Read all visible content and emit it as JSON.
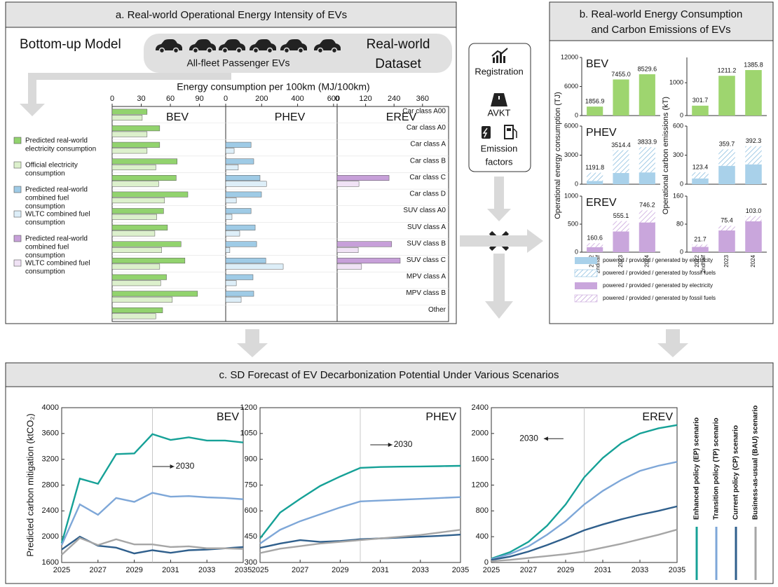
{
  "panel_a": {
    "title": "a. Real-world Operational Energy Intensity of EVs",
    "model": "Bottom-up Model",
    "fleet": "All-fleet Passenger EVs",
    "dataset": [
      "Real-world",
      "Dataset"
    ],
    "axis_title": "Energy consumption per 100km (MJ/100km)"
  },
  "middle": {
    "registration": "Registration",
    "avkt": "AVKT",
    "emission": [
      "Emission",
      "factors"
    ]
  },
  "panel_b": {
    "title": [
      "b. Real-world Energy Consumption",
      "and Carbon Emissions of EVs"
    ],
    "ylabel_left": "Operational energy consumption (TJ)",
    "ylabel_right": "Operational carbon emissions (kT)"
  },
  "panel_c": {
    "title": "c. SD Forecast of EV Decarbonization Potential Under Various Scenarios"
  },
  "chart_data": [
    {
      "type": "hbar",
      "label": "BEV",
      "xlim": [
        0,
        117
      ],
      "xticks": [
        0,
        30,
        60,
        90
      ],
      "categories": [
        "Car class A00",
        "Car class A0",
        "Car class A",
        "Car class B",
        "Car class C",
        "Car class D",
        "SUV class A0",
        "SUV class A",
        "SUV class B",
        "SUV class C",
        "MPV class A",
        "MPV class B",
        "Other"
      ],
      "series": [
        {
          "name": [
            "Predicted real-world",
            "electricity consumption"
          ],
          "color": "#92d36e",
          "values": [
            36,
            49,
            49,
            67,
            66,
            78,
            53,
            57,
            71,
            75,
            56,
            88,
            52
          ]
        },
        {
          "name": [
            "Official electricity",
            "consumption"
          ],
          "color": "#dcf0cc",
          "values": [
            31,
            36,
            36,
            45,
            48,
            54,
            46,
            44,
            51,
            49,
            50,
            62,
            45
          ]
        }
      ]
    },
    {
      "type": "hbar",
      "label": "PHEV",
      "xlim": [
        0,
        620
      ],
      "xticks": [
        0,
        200,
        400,
        600
      ],
      "series": [
        {
          "name": [
            "Predicted real-world",
            "combined fuel",
            "consumption"
          ],
          "color": "#9fcbe6",
          "values": [
            null,
            null,
            141,
            156,
            191,
            199,
            141,
            164,
            172,
            223,
            152,
            156,
            null
          ]
        },
        {
          "name": [
            "WLTC combined fuel",
            "consumption"
          ],
          "color": "#ddeef8",
          "values": [
            null,
            null,
            47,
            70,
            227,
            59,
            35,
            78,
            23,
            320,
            59,
            86,
            null
          ]
        }
      ]
    },
    {
      "type": "hbar",
      "label": "EREV",
      "xlim": [
        0,
        470
      ],
      "xticks": [
        0,
        120,
        240,
        360
      ],
      "series": [
        {
          "name": [
            "Predicted real-world",
            "combined fuel",
            "consumption"
          ],
          "color": "#c7a0d9",
          "values": [
            null,
            null,
            null,
            null,
            219,
            null,
            null,
            null,
            230,
            266,
            null,
            null,
            null
          ]
        },
        {
          "name": [
            "WLTC combined fuel",
            "consumption"
          ],
          "color": "#f0e2f5",
          "values": [
            null,
            null,
            null,
            null,
            92,
            null,
            null,
            null,
            89,
            103,
            null,
            null,
            null
          ]
        }
      ]
    },
    {
      "type": "bar",
      "label": "BEV",
      "color": "#9ed56f",
      "ylim": [
        0,
        12000
      ],
      "yticks": [
        0,
        6000,
        12000
      ],
      "values": [
        1856.9,
        7455.0,
        8529.6
      ],
      "value_labels": [
        "1856.9",
        "7455.0",
        "8529.6"
      ]
    },
    {
      "type": "bar",
      "color": "#9ed56f",
      "ylim": [
        0,
        1770
      ],
      "yticks": [
        0,
        1000
      ],
      "values": [
        301.7,
        1211.2,
        1385.8
      ],
      "value_labels": [
        "301.7",
        "1211.2",
        "1385.8"
      ]
    },
    {
      "type": "stacked",
      "label": "PHEV",
      "ylim": [
        0,
        6000
      ],
      "yticks": [
        0,
        3000,
        6000
      ],
      "total_labels": [
        "1191.8",
        "3514.4",
        "3833.9"
      ],
      "series": [
        {
          "name": "powered / provided / generated by electricity",
          "color": "#a9d1ea",
          "values": [
            340,
            1160,
            1220
          ]
        },
        {
          "name": "powered / provided / generated by  fossil fuels",
          "color": "#8ebfe0",
          "hatch": true,
          "values": [
            851.8,
            2354.4,
            2613.9
          ]
        }
      ]
    },
    {
      "type": "stacked",
      "ylim": [
        0,
        600
      ],
      "yticks": [
        0,
        300,
        600
      ],
      "total_labels": [
        "123.4",
        "359.7",
        "392.3"
      ],
      "series": [
        {
          "color": "#a9d1ea",
          "values": [
            60,
            190,
            205
          ]
        },
        {
          "color": "#8ebfe0",
          "hatch": true,
          "values": [
            63.4,
            169.7,
            187.3
          ]
        }
      ]
    },
    {
      "type": "stacked",
      "label": "EREV",
      "ylim": [
        0,
        1000
      ],
      "yticks": [
        0,
        500,
        1000
      ],
      "categories": [
        "2022 2ndhalf",
        "2023",
        "2024"
      ],
      "total_labels": [
        "160.6",
        "555.1",
        "746.2"
      ],
      "series": [
        {
          "name": "powered / provided / generated by electricity",
          "color": "#c9a6dc",
          "values": [
            90,
            370,
            530
          ]
        },
        {
          "name": "powered / provided / generated by  fossil fuels",
          "color": "#c9a6dc",
          "hatch": true,
          "values": [
            70.6,
            185.1,
            216.2
          ]
        }
      ]
    },
    {
      "type": "stacked",
      "ylim": [
        0,
        160
      ],
      "yticks": [
        0,
        80,
        160
      ],
      "categories": [
        "2022 2ndhalf",
        "2023",
        "2024"
      ],
      "total_labels": [
        "21.7",
        "75.4",
        "103.0"
      ],
      "series": [
        {
          "color": "#c9a6dc",
          "values": [
            15,
            62,
            88
          ]
        },
        {
          "color": "#c9a6dc",
          "hatch": true,
          "values": [
            6.7,
            13.4,
            15.0
          ]
        }
      ]
    },
    {
      "type": "line",
      "label": "BEV",
      "ylabel": "Predicted carbon mitigation (ktCO₂)",
      "annotation": "2030",
      "vline": 2030,
      "x": [
        2025,
        2026,
        2027,
        2028,
        2029,
        2030,
        2031,
        2032,
        2033,
        2034,
        2035
      ],
      "xlim": [
        2025,
        2035
      ],
      "xticks": [
        2025,
        2027,
        2029,
        2031,
        2033,
        2035
      ],
      "ylim": [
        1600,
        4000
      ],
      "yticks": [
        1600,
        2000,
        2400,
        2800,
        3200,
        3600,
        4000
      ],
      "series": [
        {
          "name": "Enhanced policy (EP) scenario",
          "color": "#16a197",
          "values": [
            1900,
            2900,
            2820,
            3280,
            3290,
            3590,
            3500,
            3540,
            3490,
            3490,
            3460
          ]
        },
        {
          "name": "Transition policy (TP) scenario",
          "color": "#7ea7d8",
          "values": [
            1870,
            2500,
            2340,
            2600,
            2540,
            2680,
            2620,
            2630,
            2610,
            2600,
            2580
          ]
        },
        {
          "name": "Current policy (CP) scenario",
          "color": "#2f5f8c",
          "values": [
            1800,
            2000,
            1860,
            1830,
            1740,
            1790,
            1750,
            1790,
            1800,
            1820,
            1840
          ]
        },
        {
          "name": "Business-as-usual (BAU) scenario",
          "color": "#a6a6a6",
          "values": [
            1720,
            1980,
            1870,
            1960,
            1880,
            1880,
            1840,
            1850,
            1820,
            1820,
            1810
          ]
        }
      ]
    },
    {
      "type": "line",
      "label": "PHEV",
      "annotation": "2030",
      "vline": 2030,
      "x": [
        2025,
        2026,
        2027,
        2028,
        2029,
        2030,
        2031,
        2032,
        2033,
        2034,
        2035
      ],
      "xlim": [
        2025,
        2035
      ],
      "xticks": [
        2025,
        2027,
        2029,
        2031,
        2033,
        2035
      ],
      "ylim": [
        300,
        1200
      ],
      "yticks": [
        300,
        450,
        600,
        750,
        900,
        1050,
        1200
      ],
      "series": [
        {
          "color": "#16a197",
          "values": [
            440,
            590,
            670,
            745,
            800,
            850,
            855,
            857,
            858,
            860,
            862
          ]
        },
        {
          "color": "#7ea7d8",
          "values": [
            410,
            490,
            540,
            580,
            620,
            655,
            660,
            665,
            670,
            675,
            680
          ]
        },
        {
          "color": "#2f5f8c",
          "values": [
            385,
            410,
            430,
            420,
            425,
            435,
            440,
            445,
            450,
            455,
            462
          ]
        },
        {
          "color": "#a6a6a6",
          "values": [
            355,
            380,
            395,
            410,
            420,
            430,
            440,
            450,
            460,
            475,
            490
          ]
        }
      ]
    },
    {
      "type": "line",
      "label": "EREV",
      "annotation": "2030",
      "vline": 2030,
      "x": [
        2025,
        2026,
        2027,
        2028,
        2029,
        2030,
        2031,
        2032,
        2033,
        2034,
        2035
      ],
      "xlim": [
        2025,
        2035
      ],
      "xticks": [
        2025,
        2027,
        2029,
        2031,
        2033,
        2035
      ],
      "ylim": [
        0,
        2400
      ],
      "yticks": [
        0,
        400,
        800,
        1200,
        1600,
        2000,
        2400
      ],
      "series": [
        {
          "color": "#16a197",
          "values": [
            60,
            160,
            320,
            570,
            900,
            1320,
            1620,
            1850,
            2000,
            2080,
            2130
          ]
        },
        {
          "color": "#7ea7d8",
          "values": [
            50,
            130,
            250,
            430,
            640,
            900,
            1110,
            1280,
            1420,
            1500,
            1560
          ]
        },
        {
          "color": "#2f5f8c",
          "values": [
            40,
            90,
            170,
            270,
            380,
            500,
            590,
            670,
            740,
            800,
            870
          ]
        },
        {
          "color": "#a6a6a6",
          "values": [
            20,
            40,
            70,
            100,
            130,
            170,
            230,
            290,
            360,
            430,
            510
          ]
        }
      ]
    }
  ]
}
